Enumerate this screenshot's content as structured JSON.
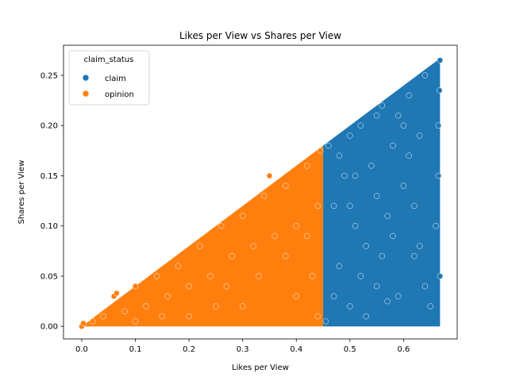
{
  "chart_data": {
    "type": "scatter",
    "title": "Likes per View vs Shares per View",
    "xlabel": "Likes per View",
    "ylabel": "Shares per View",
    "xlim": [
      -0.034,
      0.7
    ],
    "ylim": [
      -0.0125,
      0.28
    ],
    "xticks": [
      0.0,
      0.1,
      0.2,
      0.3,
      0.4,
      0.5,
      0.6
    ],
    "xtick_labels": [
      "0.0",
      "0.1",
      "0.2",
      "0.3",
      "0.4",
      "0.5",
      "0.6"
    ],
    "yticks": [
      0.0,
      0.05,
      0.1,
      0.15,
      0.2,
      0.25
    ],
    "ytick_labels": [
      "0.00",
      "0.05",
      "0.10",
      "0.15",
      "0.20",
      "0.25"
    ],
    "grid": false,
    "legend": {
      "title": "claim_status",
      "placement": "top-left",
      "entries": [
        "claim",
        "opinion"
      ]
    },
    "colors": {
      "claim": "#1f77b4",
      "opinion": "#ff7f0e"
    },
    "series": [
      {
        "name": "claim",
        "color": "#1f77b4",
        "points": [
          [
            0.455,
            0.005
          ],
          [
            0.46,
            0.18
          ],
          [
            0.47,
            0.12
          ],
          [
            0.48,
            0.06
          ],
          [
            0.49,
            0.15
          ],
          [
            0.5,
            0.02
          ],
          [
            0.51,
            0.1
          ],
          [
            0.52,
            0.2
          ],
          [
            0.53,
            0.08
          ],
          [
            0.54,
            0.16
          ],
          [
            0.55,
            0.04
          ],
          [
            0.56,
            0.22
          ],
          [
            0.57,
            0.11
          ],
          [
            0.58,
            0.18
          ],
          [
            0.59,
            0.03
          ],
          [
            0.6,
            0.14
          ],
          [
            0.61,
            0.23
          ],
          [
            0.62,
            0.07
          ],
          [
            0.63,
            0.19
          ],
          [
            0.64,
            0.25
          ],
          [
            0.65,
            0.02
          ],
          [
            0.66,
            0.1
          ],
          [
            0.665,
            0.2
          ],
          [
            0.668,
            0.265
          ],
          [
            0.667,
            0.235
          ],
          [
            0.665,
            0.15
          ],
          [
            0.668,
            0.05
          ],
          [
            0.47,
            0.03
          ],
          [
            0.5,
            0.19
          ],
          [
            0.52,
            0.05
          ],
          [
            0.55,
            0.13
          ],
          [
            0.58,
            0.09
          ],
          [
            0.6,
            0.2
          ],
          [
            0.62,
            0.12
          ],
          [
            0.64,
            0.04
          ],
          [
            0.63,
            0.08
          ],
          [
            0.55,
            0.21
          ],
          [
            0.5,
            0.12
          ],
          [
            0.48,
            0.17
          ],
          [
            0.53,
            0.01
          ],
          [
            0.57,
            0.025
          ],
          [
            0.61,
            0.17
          ],
          [
            0.59,
            0.21
          ],
          [
            0.56,
            0.07
          ],
          [
            0.51,
            0.15
          ]
        ]
      },
      {
        "name": "opinion",
        "color": "#ff7f0e",
        "points": [
          [
            0.0,
            0.0
          ],
          [
            0.003,
            0.003
          ],
          [
            0.02,
            0.005
          ],
          [
            0.04,
            0.01
          ],
          [
            0.06,
            0.03
          ],
          [
            0.08,
            0.015
          ],
          [
            0.1,
            0.04
          ],
          [
            0.12,
            0.02
          ],
          [
            0.14,
            0.05
          ],
          [
            0.16,
            0.03
          ],
          [
            0.18,
            0.06
          ],
          [
            0.2,
            0.04
          ],
          [
            0.22,
            0.08
          ],
          [
            0.24,
            0.05
          ],
          [
            0.26,
            0.1
          ],
          [
            0.28,
            0.07
          ],
          [
            0.3,
            0.11
          ],
          [
            0.32,
            0.08
          ],
          [
            0.34,
            0.13
          ],
          [
            0.36,
            0.09
          ],
          [
            0.38,
            0.14
          ],
          [
            0.4,
            0.1
          ],
          [
            0.42,
            0.16
          ],
          [
            0.44,
            0.12
          ],
          [
            0.445,
            0.175
          ],
          [
            0.35,
            0.15
          ],
          [
            0.3,
            0.02
          ],
          [
            0.2,
            0.01
          ],
          [
            0.4,
            0.03
          ],
          [
            0.43,
            0.05
          ],
          [
            0.25,
            0.02
          ],
          [
            0.33,
            0.05
          ],
          [
            0.15,
            0.01
          ],
          [
            0.1,
            0.005
          ],
          [
            0.065,
            0.033
          ],
          [
            0.38,
            0.07
          ],
          [
            0.42,
            0.09
          ],
          [
            0.27,
            0.04
          ],
          [
            0.44,
            0.01
          ]
        ]
      }
    ]
  }
}
